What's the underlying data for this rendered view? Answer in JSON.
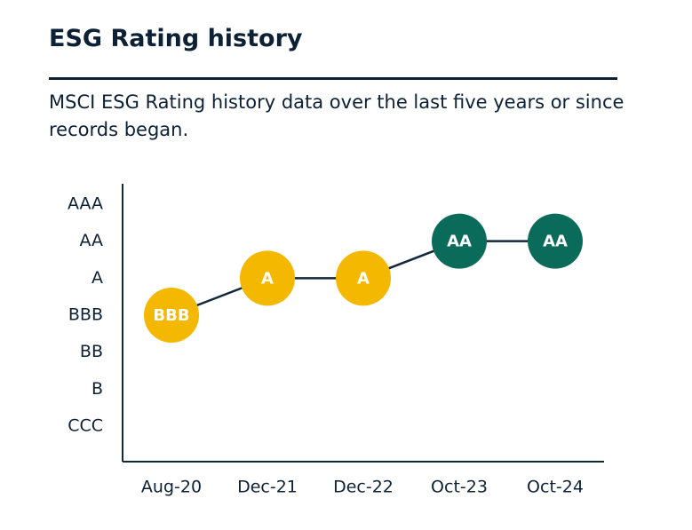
{
  "chart_data": {
    "type": "line",
    "title": "ESG Rating history",
    "subtitle": "MSCI ESG Rating history data over the last five years or since records began.",
    "categories": [
      "Aug-20",
      "Dec-21",
      "Dec-22",
      "Oct-23",
      "Oct-24"
    ],
    "y_categories": [
      "CCC",
      "B",
      "BB",
      "BBB",
      "A",
      "AA",
      "AAA"
    ],
    "values": [
      "BBB",
      "A",
      "A",
      "AA",
      "AA"
    ],
    "point_colors": [
      "#f5b800",
      "#f5b800",
      "#f5b800",
      "#0b6b5a",
      "#0b6b5a"
    ],
    "line_color": "#13283a"
  }
}
